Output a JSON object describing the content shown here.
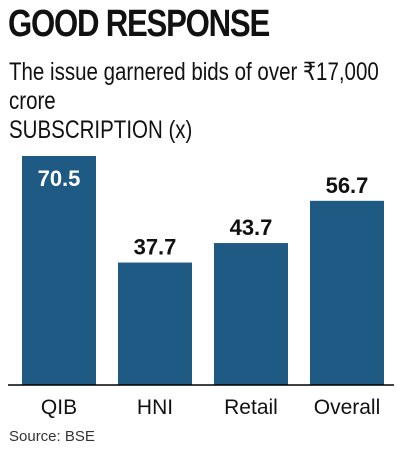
{
  "header": {
    "title": "GOOD RESPONSE",
    "subtitle": "The issue garnered bids of over ₹17,000 crore",
    "unit_label": "SUBSCRIPTION (x)"
  },
  "footer": {
    "source": "Source: BSE"
  },
  "colors": {
    "bar": "#1f5a85",
    "axis": "#000000",
    "text": "#111111",
    "value_inside": "#ffffff"
  },
  "chart_data": {
    "type": "bar",
    "title": "GOOD RESPONSE",
    "subtitle": "The issue garnered bids of over ₹17,000 crore",
    "ylabel": "SUBSCRIPTION (x)",
    "xlabel": "",
    "categories": [
      "QIB",
      "HNI",
      "Retail",
      "Overall"
    ],
    "values": [
      70.5,
      37.7,
      43.7,
      56.7
    ],
    "data_labels": [
      "70.5",
      "37.7",
      "43.7",
      "56.7"
    ],
    "ylim": [
      0,
      70.5
    ],
    "grid": false,
    "legend": "none"
  }
}
